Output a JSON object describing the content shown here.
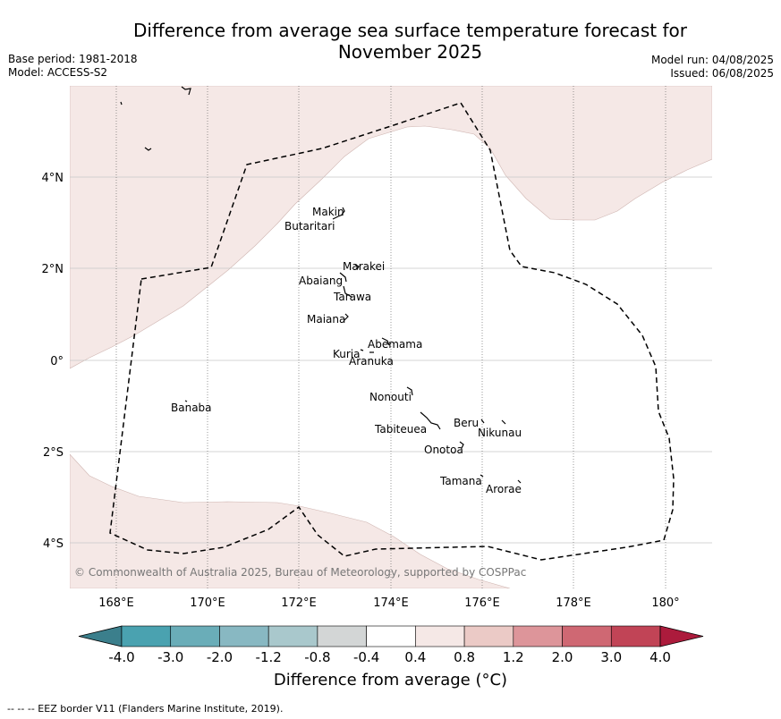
{
  "title": "Difference from average sea surface temperature forecast for November 2025",
  "title_lines": [
    "Difference from average sea surface temperature forecast for",
    "November 2025"
  ],
  "meta": {
    "base_period": "Base period: 1981-2018",
    "model": "Model: ACCESS-S2",
    "model_run": "Model run: 04/08/2025",
    "issued": "Issued: 06/08/2025"
  },
  "copyright": "© Commonwealth of Australia 2025, Bureau of Meteorology, supported by COSPPac",
  "latitude_labels": [
    "4°N",
    "2°N",
    "0°",
    "2°S",
    "4°S"
  ],
  "longitude_labels": [
    "168°E",
    "170°E",
    "172°E",
    "174°E",
    "176°E",
    "178°E",
    "180°"
  ],
  "places": [
    "Makin",
    "Butaritari",
    "Marakei",
    "Abaiang",
    "Tarawa",
    "Maiana",
    "Abemama",
    "Kuria",
    "Aranuka",
    "Banaba",
    "Nonouti",
    "Beru",
    "Nikunau",
    "Tabiteuea",
    "Onotoa",
    "Tamana",
    "Arorae"
  ],
  "colorbar": {
    "title": "Difference from average (°C)",
    "tick_labels": [
      "-4.0",
      "-3.0",
      "-2.0",
      "-1.2",
      "-0.8",
      "-0.4",
      "0.4",
      "0.8",
      "1.2",
      "2.0",
      "3.0",
      "4.0"
    ],
    "colors": [
      "#3b7f8c",
      "#4aa2b0",
      "#6aadb8",
      "#88b8c2",
      "#a9c8cc",
      "#d3d6d6",
      "#ffffff",
      "#f5e8e6",
      "#ebcac6",
      "#dd959a",
      "#cf6873",
      "#c14456",
      "#ac1b3c"
    ]
  },
  "map_colors": {
    "anomaly_0_4_to_0_8": "#f5e8e6",
    "neutral": "#ffffff",
    "eez_border": "#000000"
  },
  "footer": "--  --  -- EEZ border V11 (Flanders Marine Institute, 2019)."
}
